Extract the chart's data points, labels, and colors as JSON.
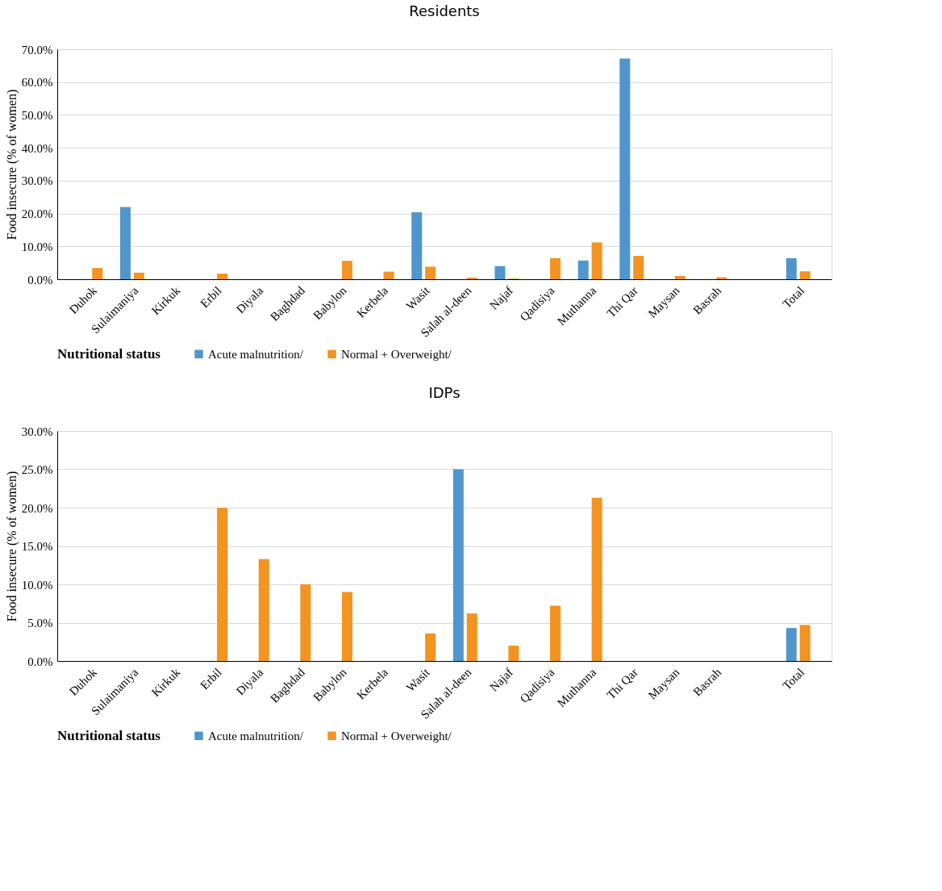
{
  "chart_data": [
    {
      "type": "bar",
      "title": "Residents",
      "ylabel": "Food insecure (% of women)",
      "legend_title": "Nutritional status",
      "categories": [
        "Duhok",
        "Sulaimaniya",
        "Kirkuk",
        "Erbil",
        "Diyala",
        "Baghdad",
        "Babylon",
        "Kerbela",
        "Wasit",
        "Salah al-deen",
        "Najaf",
        "Qadisiya",
        "Muthanna",
        "Thi Qar",
        "Maysan",
        "Basrah",
        null,
        "Total"
      ],
      "series": [
        {
          "name": "Acute malnutrition/",
          "color": "#5096cc",
          "values": [
            0,
            22.0,
            0,
            0,
            0,
            0,
            0,
            0,
            20.4,
            0,
            4.0,
            0,
            5.7,
            67.2,
            0,
            0,
            null,
            6.4
          ]
        },
        {
          "name": "Normal + Overweight/",
          "color": "#f39322",
          "values": [
            3.4,
            2.0,
            0,
            1.7,
            0,
            0,
            5.6,
            2.3,
            3.8,
            0.5,
            0.2,
            6.4,
            11.2,
            7.1,
            1.0,
            0.6,
            null,
            2.4
          ]
        }
      ],
      "ylim": [
        0,
        70
      ],
      "yticks": [
        {
          "value": 0,
          "label": "0.0%"
        },
        {
          "value": 10,
          "label": "10.0%"
        },
        {
          "value": 20,
          "label": "20.0%"
        },
        {
          "value": 30,
          "label": "30.0%"
        },
        {
          "value": 40,
          "label": "40.0%"
        },
        {
          "value": 50,
          "label": "50.0%"
        },
        {
          "value": 60,
          "label": "60.0%"
        },
        {
          "value": 70,
          "label": "70.0%"
        }
      ],
      "grid": "y",
      "legend": "bottom"
    },
    {
      "type": "bar",
      "title": "IDPs",
      "ylabel": "Food insecure (% of women)",
      "legend_title": "Nutritional status",
      "categories": [
        "Duhok",
        "Sulaimaniya",
        "Kirkuk",
        "Erbil",
        "Diyala",
        "Baghdad",
        "Babylon",
        "Kerbela",
        "Wasit",
        "Salah al-deen",
        "Najaf",
        "Qadisiya",
        "Muthanna",
        "Thi Qar",
        "Maysan",
        "Basrah",
        null,
        "Total"
      ],
      "series": [
        {
          "name": "Acute malnutrition/",
          "color": "#5096cc",
          "values": [
            0,
            0,
            0,
            0,
            0,
            0,
            0,
            0,
            0,
            25.0,
            0,
            0,
            0,
            0,
            0,
            0,
            null,
            4.3
          ]
        },
        {
          "name": "Normal + Overweight/",
          "color": "#f39322",
          "values": [
            0,
            0,
            0,
            20.0,
            13.3,
            10.0,
            9.0,
            0,
            3.6,
            6.2,
            2.0,
            7.2,
            21.3,
            0,
            0,
            0,
            null,
            4.7
          ]
        }
      ],
      "ylim": [
        0,
        30
      ],
      "yticks": [
        {
          "value": 0,
          "label": "0.0%"
        },
        {
          "value": 5,
          "label": "5.0%"
        },
        {
          "value": 10,
          "label": "10.0%"
        },
        {
          "value": 15,
          "label": "15.0%"
        },
        {
          "value": 20,
          "label": "20.0%"
        },
        {
          "value": 25,
          "label": "25.0%"
        },
        {
          "value": 30,
          "label": "30.0%"
        }
      ],
      "grid": "y",
      "legend": "bottom"
    }
  ]
}
